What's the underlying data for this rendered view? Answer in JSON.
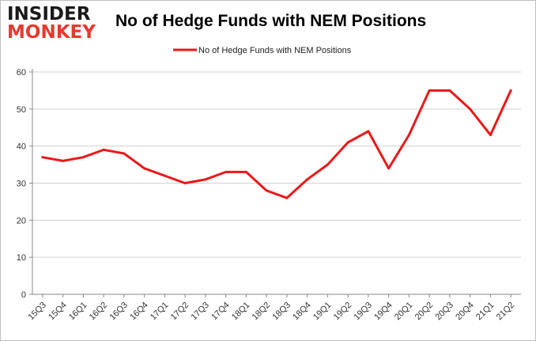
{
  "logo": {
    "line1": "INSIDER",
    "line2": "MONKEY"
  },
  "colors": {
    "series": "#e8191a",
    "grid": "#d0d0d0",
    "axis": "#888888",
    "logo_accent": "#e53a2e"
  },
  "chart_data": {
    "type": "line",
    "title": "No of Hedge Funds with NEM Positions",
    "xlabel": "",
    "ylabel": "",
    "ylim": [
      0,
      60
    ],
    "yticks": [
      0,
      10,
      20,
      30,
      40,
      50,
      60
    ],
    "grid": true,
    "legend_position": "top-center",
    "categories": [
      "15Q3",
      "15Q4",
      "16Q1",
      "16Q2",
      "16Q3",
      "16Q4",
      "17Q1",
      "17Q2",
      "17Q3",
      "17Q4",
      "18Q1",
      "18Q2",
      "18Q3",
      "18Q4",
      "19Q1",
      "19Q2",
      "19Q3",
      "19Q4",
      "20Q1",
      "20Q2",
      "20Q3",
      "20Q4",
      "21Q1",
      "21Q2"
    ],
    "series": [
      {
        "name": "No of Hedge Funds with NEM Positions",
        "values": [
          37,
          36,
          37,
          39,
          38,
          34,
          32,
          30,
          31,
          33,
          33,
          28,
          26,
          31,
          35,
          41,
          44,
          34,
          43,
          55,
          55,
          50,
          43,
          55
        ]
      }
    ]
  }
}
